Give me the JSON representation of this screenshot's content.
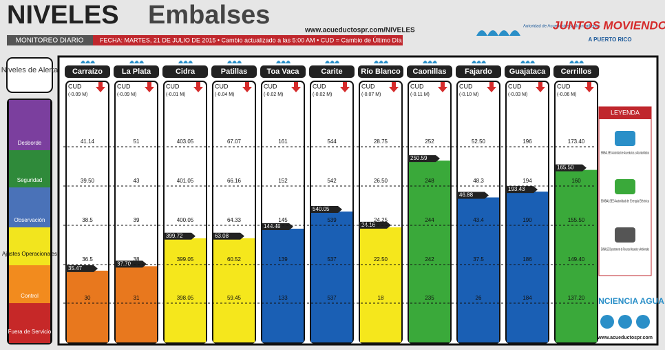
{
  "header": {
    "title_bold": "NIVELES",
    "title_light": "Embalses",
    "url": "www.acueductospr.com/NIVELES",
    "monitoreo": "MONITOREO DIARIO",
    "fecha": "FECHA: MARTES, 21 DE JULIO DE 2015 • Cambio actualizado a las 5:00 AM • CUD = Cambio de Último Día",
    "aaa_logo": "Autoridad de Acueductos y Alcantarillados",
    "juntos": "JUNTOS MOVIENDO",
    "puerto_rico": "A PUERTO RICO"
  },
  "alert_levels": {
    "title": "Niveles de Alerta",
    "levels": [
      "Desborde",
      "Seguridad",
      "Observación",
      "Ajustes Operacionales",
      "Control",
      "Fuera de Servicio"
    ]
  },
  "cud_label": "CUD",
  "reservoirs": [
    {
      "name": "Carraízo",
      "cud": "(-0.09 M)",
      "thresholds": [
        "41.14",
        "39.50",
        "38.5",
        "36.5",
        "30"
      ],
      "level": "35.47",
      "color": "#e8781e"
    },
    {
      "name": "La Plata",
      "cud": "(-0.09 M)",
      "thresholds": [
        "51",
        "43",
        "39",
        "38",
        "31"
      ],
      "level": "37.70",
      "color": "#e8781e"
    },
    {
      "name": "Cidra",
      "cud": "(-0.01 M)",
      "thresholds": [
        "403.05",
        "401.05",
        "400.05",
        "399.05",
        "398.05"
      ],
      "level": "399.72",
      "color": "#f5e71c"
    },
    {
      "name": "Patillas",
      "cud": "(-0.04 M)",
      "thresholds": [
        "67.07",
        "66.16",
        "64.33",
        "60.52",
        "59.45"
      ],
      "level": "63.08",
      "color": "#f5e71c"
    },
    {
      "name": "Toa Vaca",
      "cud": "(-0.02 M)",
      "thresholds": [
        "161",
        "152",
        "145",
        "139",
        "133"
      ],
      "level": "144.48",
      "color": "#1a5fb4"
    },
    {
      "name": "Carite",
      "cud": "(-0.02 M)",
      "thresholds": [
        "544",
        "542",
        "539",
        "537",
        "537"
      ],
      "level": "540.05",
      "color": "#1a5fb4"
    },
    {
      "name": "Río Blanco",
      "cud": "(-0.07 M)",
      "thresholds": [
        "28.75",
        "26.50",
        "24.25",
        "22.50",
        "18"
      ],
      "level": "24.16",
      "color": "#f5e71c"
    },
    {
      "name": "Caonillas",
      "cud": "(-0.11 M)",
      "thresholds": [
        "252",
        "248",
        "244",
        "242",
        "235"
      ],
      "level": "250.59",
      "color": "#3aa93a"
    },
    {
      "name": "Fajardo",
      "cud": "(-0.10 M)",
      "thresholds": [
        "52.50",
        "48.3",
        "43.4",
        "37.5",
        "26"
      ],
      "level": "46.88",
      "color": "#1a5fb4"
    },
    {
      "name": "Guajataca",
      "cud": "(-0.03 M)",
      "thresholds": [
        "196",
        "194",
        "190",
        "186",
        "184"
      ],
      "level": "193.43",
      "color": "#1a5fb4"
    },
    {
      "name": "Cerrillos",
      "cud": "(-0.06 M)",
      "thresholds": [
        "173.40",
        "160",
        "155.50",
        "149.40",
        "137.20"
      ],
      "level": "165.50",
      "color": "#3aa93a"
    }
  ],
  "legend": {
    "title": "LEYENDA",
    "items": [
      "EMBALSES Autoridad de Acueductos y Alcantarillados",
      "EMBALSES Autoridad de Energía Eléctrica",
      "EMBALSE Departamento de Recursos Naturales y Ambientales"
    ]
  },
  "footer": {
    "conciencia": "CONCIENCIA AGUA",
    "url": "www.acueductospr.com"
  }
}
